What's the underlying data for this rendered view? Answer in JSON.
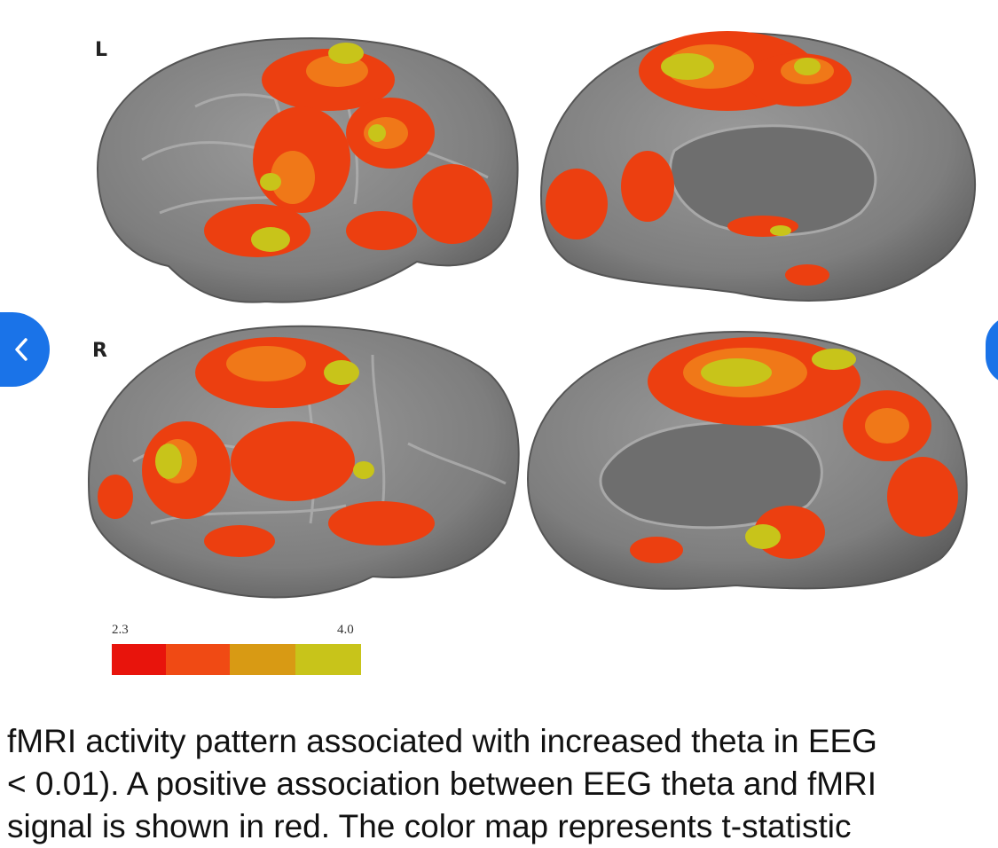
{
  "figure": {
    "panels": [
      {
        "hemisphere_label": "L",
        "view": "lateral"
      },
      {
        "hemisphere_label": "",
        "view": "medial"
      },
      {
        "hemisphere_label": "R",
        "view": "lateral"
      },
      {
        "hemisphere_label": "",
        "view": "medial"
      }
    ],
    "colorbar": {
      "min_label": "2.3",
      "max_label": "4.0",
      "colors": [
        "#e8140c",
        "#f04a14",
        "#d89a14",
        "#c8c41a"
      ]
    },
    "colors": {
      "cortex": "#8a8a8a",
      "cortex_dark": "#5e5e5e",
      "activation_low": "#e8140c",
      "activation_mid": "#f07818",
      "activation_high": "#d0cf20"
    }
  },
  "navigation": {
    "prev_icon": "chevron-left-icon",
    "next_icon": "chevron-right-icon",
    "accent": "#1a73e8"
  },
  "caption": {
    "line1": "fMRI activity pattern associated with increased theta in EEG",
    "line2": "< 0.01). A positive association between EEG theta and fMRI",
    "line3": "signal is shown in red. The color map represents t-statistic"
  }
}
